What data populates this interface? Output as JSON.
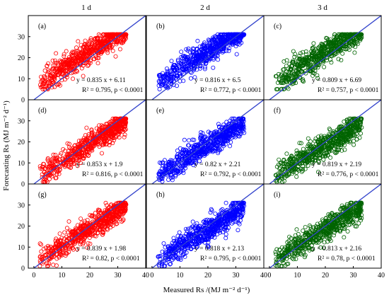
{
  "figure": {
    "column_titles": [
      "1 d",
      "2 d",
      "3 d"
    ],
    "xlabel": "Measured Rs /(MJ m⁻² d⁻¹)",
    "ylabel": "Forecasting Rs (MJ m⁻² d⁻¹)"
  },
  "chart_data": {
    "type": "scatter",
    "xlim": [
      -2,
      40
    ],
    "ylim": [
      0,
      40
    ],
    "xticks": [
      "0",
      "10",
      "20",
      "30",
      "40"
    ],
    "yticks": [
      "0",
      "10",
      "20",
      "30"
    ],
    "marker": "open-circle",
    "colors": {
      "1 d": "#ff0000",
      "2 d": "#0000ff",
      "3 d": "#006400",
      "fit_line": "#3344cc"
    },
    "panels": [
      {
        "id": "(a)",
        "row": 0,
        "col": 0,
        "color": "#ff0000",
        "slope": 0.835,
        "intercept": 6.11,
        "equation": "y = 0.835 x + 6.11",
        "r2_text": "R² = 0.795,  p < 0.0001",
        "r2": 0.795,
        "x_range": [
          2,
          33
        ],
        "y_range": [
          5,
          31
        ]
      },
      {
        "id": "(b)",
        "row": 0,
        "col": 1,
        "color": "#0000ff",
        "slope": 0.816,
        "intercept": 6.5,
        "equation": "y = 0.816 x + 6.5",
        "r2_text": "R² = 0.772,  p < 0.0001",
        "r2": 0.772,
        "x_range": [
          2,
          33
        ],
        "y_range": [
          5,
          31
        ]
      },
      {
        "id": "(c)",
        "row": 0,
        "col": 2,
        "color": "#006400",
        "slope": 0.809,
        "intercept": 6.69,
        "equation": "y = 0.809 x + 6.69",
        "r2_text": "R² = 0.757,  p < 0.0001",
        "r2": 0.757,
        "x_range": [
          2,
          33
        ],
        "y_range": [
          5,
          31
        ]
      },
      {
        "id": "(d)",
        "row": 1,
        "col": 0,
        "color": "#ff0000",
        "slope": 0.853,
        "intercept": 1.9,
        "equation": "y = 0.853 x + 1.9",
        "r2_text": "R² = 0.816,  p < 0.0001",
        "r2": 0.816,
        "x_range": [
          2,
          33
        ],
        "y_range": [
          1,
          31
        ]
      },
      {
        "id": "(e)",
        "row": 1,
        "col": 1,
        "color": "#0000ff",
        "slope": 0.82,
        "intercept": 2.21,
        "equation": "y = 0.82 x + 2.21",
        "r2_text": "R² = 0.792,  p < 0.0001",
        "r2": 0.792,
        "x_range": [
          2,
          33
        ],
        "y_range": [
          1,
          31
        ]
      },
      {
        "id": "(f)",
        "row": 1,
        "col": 2,
        "color": "#006400",
        "slope": 0.819,
        "intercept": 2.19,
        "equation": "y = 0.819 x + 2.19",
        "r2_text": "R² = 0.776,  p < 0.0001",
        "r2": 0.776,
        "x_range": [
          2,
          33
        ],
        "y_range": [
          1,
          31
        ]
      },
      {
        "id": "(g)",
        "row": 2,
        "col": 0,
        "color": "#ff0000",
        "slope": 0.839,
        "intercept": 1.98,
        "equation": "y = 0.839 x + 1.98",
        "r2_text": "R² = 0.82,  p < 0.0001",
        "r2": 0.82,
        "x_range": [
          2,
          33
        ],
        "y_range": [
          1,
          31
        ]
      },
      {
        "id": "(h)",
        "row": 2,
        "col": 1,
        "color": "#0000ff",
        "slope": 0.818,
        "intercept": 2.13,
        "equation": "y = 0.818 x + 2.13",
        "r2_text": "R² = 0.795,  p < 0.0001",
        "r2": 0.795,
        "x_range": [
          2,
          33
        ],
        "y_range": [
          1,
          31
        ]
      },
      {
        "id": "(i)",
        "row": 2,
        "col": 2,
        "color": "#006400",
        "slope": 0.813,
        "intercept": 2.16,
        "equation": "y = 0.813 x + 2.16",
        "r2_text": "R² = 0.78,  p < 0.0001",
        "r2": 0.78,
        "x_range": [
          2,
          33
        ],
        "y_range": [
          1,
          31
        ]
      }
    ]
  }
}
